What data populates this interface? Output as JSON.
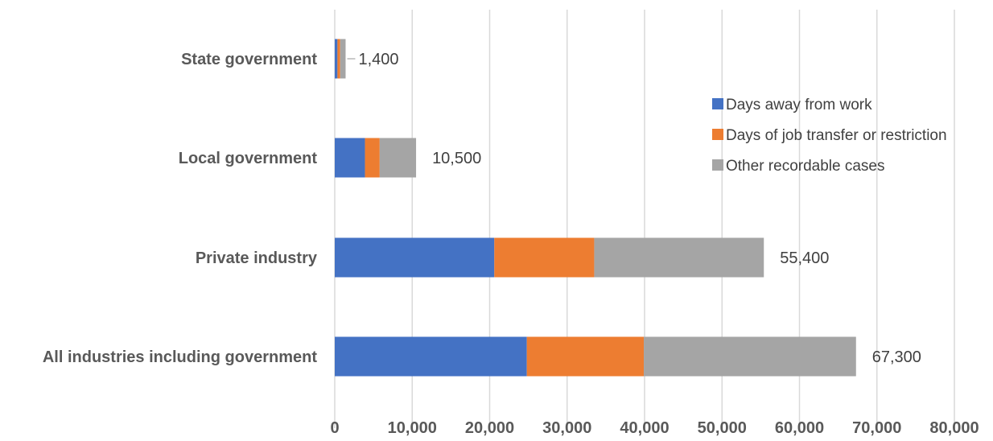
{
  "chart_data": {
    "type": "bar",
    "orientation": "horizontal",
    "stacked": true,
    "title": "",
    "xlabel": "",
    "ylabel": "",
    "categories": [
      "All industries including government",
      "Private industry",
      "Local government",
      "State government"
    ],
    "series": [
      {
        "name": "Days away from work",
        "color": "#4472C4",
        "values": [
          24800,
          20600,
          3900,
          350
        ]
      },
      {
        "name": "Days of job transfer or restriction",
        "color": "#ED7D31",
        "values": [
          15100,
          12900,
          1900,
          350
        ]
      },
      {
        "name": "Other recordable cases",
        "color": "#A5A5A5",
        "values": [
          27400,
          21900,
          4700,
          700
        ]
      }
    ],
    "totals": [
      67300,
      55400,
      10500,
      1400
    ],
    "total_labels": [
      "67,300",
      "55,400",
      "10,500",
      "1,400"
    ],
    "xlim": [
      0,
      80000
    ],
    "xticks": [
      0,
      10000,
      20000,
      30000,
      40000,
      50000,
      60000,
      70000,
      80000
    ],
    "xtick_labels": [
      "0",
      "10,000",
      "20,000",
      "30,000",
      "40,000",
      "50,000",
      "60,000",
      "70,000",
      "80,000"
    ],
    "grid": true,
    "legend": "right"
  }
}
